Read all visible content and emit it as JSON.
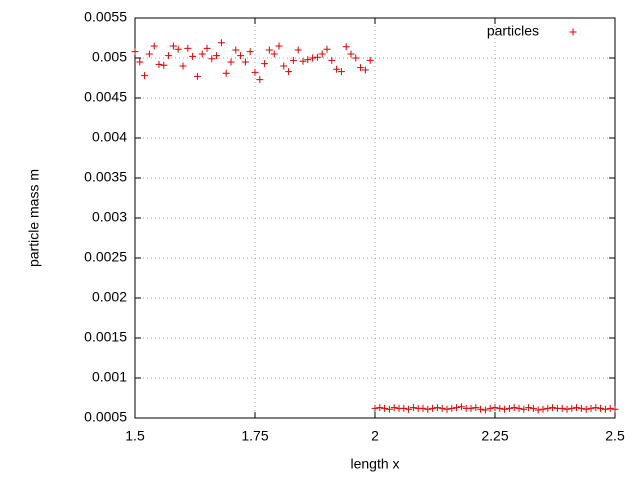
{
  "chart_data": {
    "type": "scatter",
    "xlabel": "length x",
    "ylabel": "particle mass m",
    "x": [
      1.5,
      1.51,
      1.52,
      1.53,
      1.54,
      1.55,
      1.56,
      1.57,
      1.58,
      1.59,
      1.6,
      1.61,
      1.62,
      1.63,
      1.64,
      1.65,
      1.66,
      1.67,
      1.68,
      1.69,
      1.7,
      1.71,
      1.72,
      1.73,
      1.74,
      1.75,
      1.76,
      1.77,
      1.78,
      1.79,
      1.8,
      1.81,
      1.82,
      1.83,
      1.84,
      1.85,
      1.86,
      1.87,
      1.88,
      1.89,
      1.9,
      1.91,
      1.92,
      1.93,
      1.94,
      1.95,
      1.96,
      1.97,
      1.98,
      1.99,
      2,
      2.01,
      2.02,
      2.03,
      2.04,
      2.05,
      2.06,
      2.07,
      2.08,
      2.09,
      2.1,
      2.11,
      2.12,
      2.13,
      2.14,
      2.15,
      2.16,
      2.17,
      2.18,
      2.19,
      2.2,
      2.21,
      2.22,
      2.23,
      2.24,
      2.25,
      2.26,
      2.27,
      2.28,
      2.29,
      2.3,
      2.31,
      2.32,
      2.33,
      2.34,
      2.35,
      2.36,
      2.37,
      2.38,
      2.39,
      2.4,
      2.41,
      2.42,
      2.43,
      2.44,
      2.45,
      2.46,
      2.47,
      2.48,
      2.49,
      2.5
    ],
    "series": [
      {
        "name": "particles",
        "color": "#e00000",
        "values": [
          0.00508,
          0.00495,
          0.00478,
          0.00505,
          0.00515,
          0.00492,
          0.00491,
          0.00503,
          0.00515,
          0.00511,
          0.0049,
          0.00512,
          0.00502,
          0.00477,
          0.00505,
          0.00512,
          0.00499,
          0.00503,
          0.00519,
          0.00481,
          0.00495,
          0.0051,
          0.00503,
          0.00495,
          0.00508,
          0.00482,
          0.00473,
          0.00493,
          0.0051,
          0.00505,
          0.00515,
          0.0049,
          0.00483,
          0.00497,
          0.0051,
          0.00496,
          0.00498,
          0.005,
          0.00501,
          0.00505,
          0.00511,
          0.00497,
          0.00486,
          0.00483,
          0.00514,
          0.00505,
          0.005,
          0.00488,
          0.00485,
          0.00497,
          0.00062,
          0.00063,
          0.00062,
          0.00061,
          0.00063,
          0.00062,
          0.00062,
          0.00061,
          0.00063,
          0.00062,
          0.00062,
          0.00061,
          0.00062,
          0.00063,
          0.00062,
          0.00061,
          0.00062,
          0.00063,
          0.00064,
          0.00062,
          0.00062,
          0.00063,
          0.00061,
          0.0006,
          0.00062,
          0.00063,
          0.00062,
          0.00061,
          0.00062,
          0.00063,
          0.00062,
          0.00061,
          0.00063,
          0.00062,
          0.0006,
          0.00061,
          0.00062,
          0.00063,
          0.00062,
          0.00062,
          0.00061,
          0.00062,
          0.00063,
          0.00062,
          0.00061,
          0.00062,
          0.00063,
          0.00062,
          0.00061,
          0.00062,
          0.00061
        ]
      }
    ],
    "xlim": [
      1.5,
      2.5
    ],
    "xticks": [
      1.5,
      1.75,
      2,
      2.25,
      2.5
    ],
    "ylim": [
      0.0005,
      0.0055
    ],
    "yticks": [
      0.0005,
      0.001,
      0.0015,
      0.002,
      0.0025,
      0.003,
      0.0035,
      0.004,
      0.0045,
      0.005,
      0.0055
    ],
    "grid": true,
    "legend": "top-right"
  }
}
